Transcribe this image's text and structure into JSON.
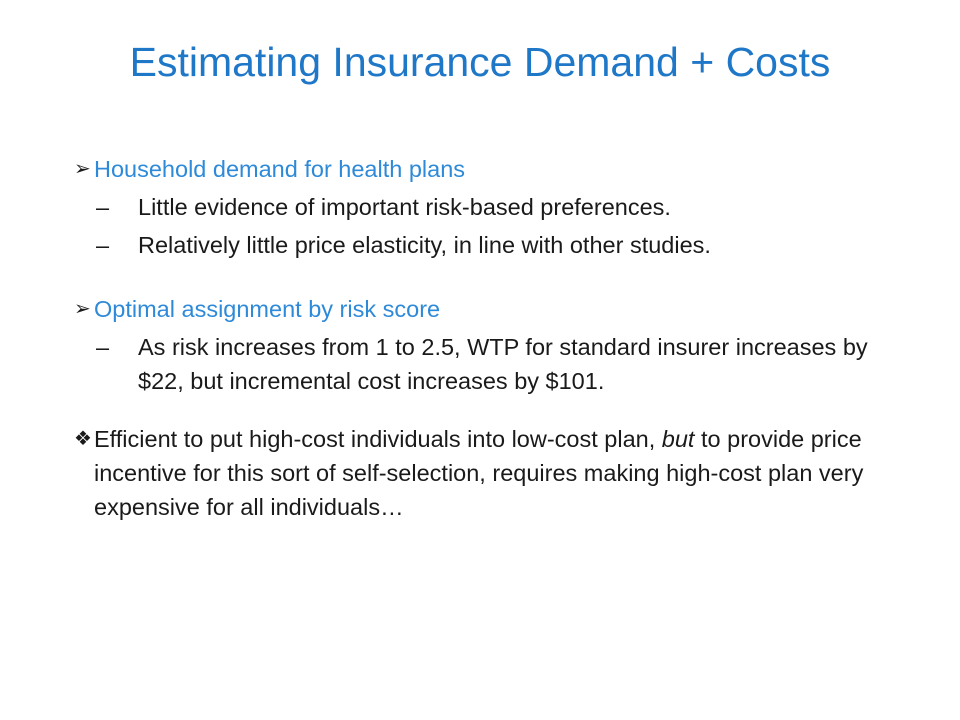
{
  "slide": {
    "title": "Estimating Insurance Demand + Costs",
    "colors": {
      "title": "#1f77c8",
      "heading": "#2e8ad8",
      "text": "#1a1a1a"
    },
    "sections": [
      {
        "marker_icon": "arrowhead-bullet-icon",
        "marker_glyph": "➢",
        "heading": "Household demand for health plans",
        "points": [
          {
            "dash": "–",
            "text": "Little evidence of important risk-based preferences."
          },
          {
            "dash": "–",
            "text": "Relatively little price elasticity, in line with other studies."
          }
        ]
      },
      {
        "marker_icon": "arrowhead-bullet-icon",
        "marker_glyph": "➢",
        "heading": "Optimal assignment by risk score",
        "points": [
          {
            "dash": "–",
            "text": "As risk increases from 1 to 2.5, WTP for standard insurer increases by $22, but incremental cost increases by $101."
          }
        ]
      }
    ],
    "conclusion": {
      "marker_icon": "diamond-bullet-icon",
      "marker_glyph": "❖",
      "text_before": "Efficient to put high-cost individuals into low-cost plan,",
      "text_italic": "but",
      "text_after": "to provide price incentive for this sort of self-selection, requires making high-cost plan very expensive for all individuals…"
    }
  }
}
